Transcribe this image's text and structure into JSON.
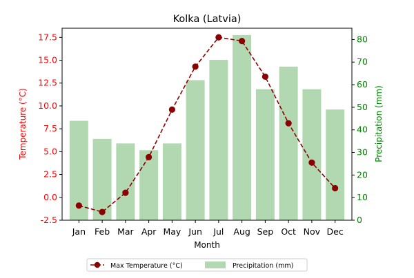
{
  "chart_data": {
    "type": "bar+line",
    "title": "Kolka (Latvia)",
    "xlabel": "Month",
    "ylabel_left": "Temperature (°C)",
    "ylabel_right": "Precipitation (mm)",
    "categories": [
      "Jan",
      "Feb",
      "Mar",
      "Apr",
      "May",
      "Jun",
      "Jul",
      "Aug",
      "Sep",
      "Oct",
      "Nov",
      "Dec"
    ],
    "series": [
      {
        "name": "Max Temperature (°C)",
        "kind": "line",
        "axis": "left",
        "color": "#8b0000",
        "values": [
          -0.9,
          -1.6,
          0.5,
          4.4,
          9.6,
          14.3,
          17.5,
          17.1,
          13.2,
          8.1,
          3.8,
          1.0
        ]
      },
      {
        "name": "Precipitation (mm)",
        "kind": "bar",
        "axis": "right",
        "color": "#b2d8b2",
        "values": [
          44,
          36,
          34,
          31,
          34,
          62,
          71,
          82,
          58,
          68,
          58,
          49
        ]
      }
    ],
    "ylim_left": [
      -2.5,
      18.5
    ],
    "ylim_right": [
      0,
      85
    ],
    "yticks_left": [
      "-2.5",
      "0.0",
      "2.5",
      "5.0",
      "7.5",
      "10.0",
      "12.5",
      "15.0",
      "17.5"
    ],
    "yticks_right": [
      "0",
      "10",
      "20",
      "30",
      "40",
      "50",
      "60",
      "70",
      "80"
    ],
    "left_axis_color": "#ff0000",
    "right_axis_color": "#008000",
    "legend_position": "bottom-center",
    "grid": false
  }
}
